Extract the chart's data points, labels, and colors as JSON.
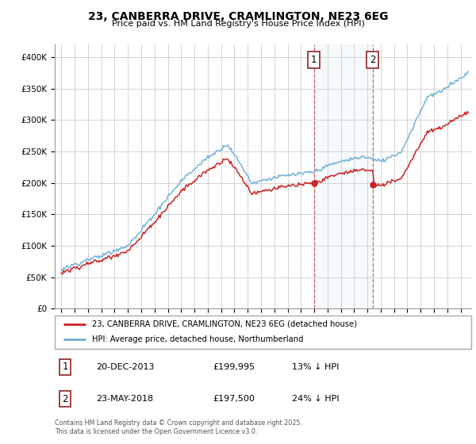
{
  "title": "23, CANBERRA DRIVE, CRAMLINGTON, NE23 6EG",
  "subtitle": "Price paid vs. HM Land Registry's House Price Index (HPI)",
  "legend_line1": "23, CANBERRA DRIVE, CRAMLINGTON, NE23 6EG (detached house)",
  "legend_line2": "HPI: Average price, detached house, Northumberland",
  "annotation1_date": "20-DEC-2013",
  "annotation1_price": "£199,995",
  "annotation1_hpi": "13% ↓ HPI",
  "annotation2_date": "23-MAY-2018",
  "annotation2_price": "£197,500",
  "annotation2_hpi": "24% ↓ HPI",
  "copyright": "Contains HM Land Registry data © Crown copyright and database right 2025.\nThis data is licensed under the Open Government Licence v3.0.",
  "hpi_color": "#6baed6",
  "price_color": "#cc2222",
  "marker1_x": 2013.97,
  "marker2_x": 2018.38,
  "ylim_min": 0,
  "ylim_max": 420000,
  "xlim_min": 1994.5,
  "xlim_max": 2025.8
}
